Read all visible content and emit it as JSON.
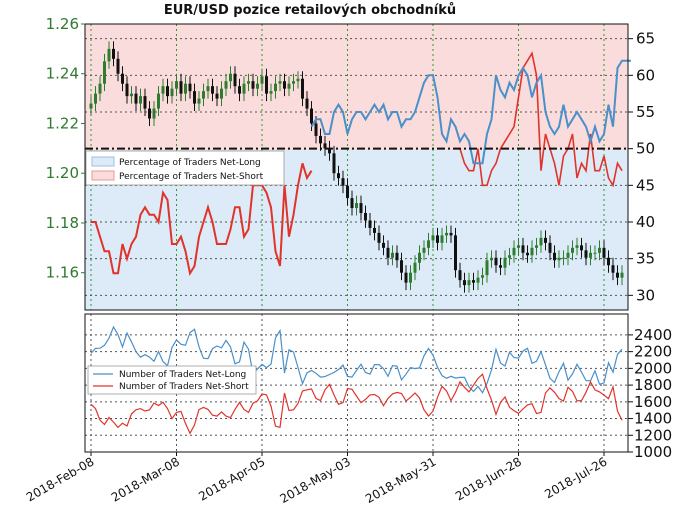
{
  "title": "EUR/USD pozice retailových obchodníků",
  "colors": {
    "long_line": "#4a90c9",
    "short_line": "#e0342b",
    "long_fill": "#dcebf7",
    "short_fill": "#fbdcdc",
    "candle_up": "#2e7d2e",
    "candle_down": "#111111",
    "left_axis": "#2f7a2f"
  },
  "chart_data": [
    {
      "type": "line",
      "name": "price-and-sentiment",
      "x_dates": [
        "2018-Feb-08",
        "2018-Mar-08",
        "2018-Apr-05",
        "2018-May-03",
        "2018-May-31",
        "2018-Jun-28",
        "2018-Jul-26"
      ],
      "left_axis": {
        "ylim": [
          1.145,
          1.26
        ],
        "ticks": [
          "1.26",
          "1.24",
          "1.22",
          "1.20",
          "1.18",
          "1.16"
        ]
      },
      "right_axis": {
        "ylim": [
          28,
          67
        ],
        "ticks": [
          "65",
          "60",
          "55",
          "50",
          "45",
          "40",
          "35",
          "30"
        ]
      },
      "reference_line": 50,
      "legend": {
        "position": "left",
        "entries": [
          "Percentage of Traders Net-Long",
          "Percentage of Traders Net-Short"
        ]
      },
      "price_close": [
        1.228,
        1.232,
        1.236,
        1.245,
        1.25,
        1.246,
        1.24,
        1.236,
        1.231,
        1.232,
        1.228,
        1.231,
        1.226,
        1.222,
        1.226,
        1.232,
        1.235,
        1.231,
        1.234,
        1.237,
        1.232,
        1.236,
        1.233,
        1.228,
        1.23,
        1.233,
        1.235,
        1.232,
        1.23,
        1.234,
        1.237,
        1.24,
        1.235,
        1.232,
        1.236,
        1.237,
        1.234,
        1.236,
        1.239,
        1.232,
        1.233,
        1.236,
        1.237,
        1.234,
        1.236,
        1.237,
        1.238,
        1.23,
        1.226,
        1.22,
        1.215,
        1.212,
        1.21,
        1.208,
        1.2,
        1.198,
        1.195,
        1.19,
        1.186,
        1.188,
        1.184,
        1.181,
        1.178,
        1.176,
        1.172,
        1.17,
        1.166,
        1.168,
        1.165,
        1.16,
        1.156,
        1.16,
        1.164,
        1.168,
        1.17,
        1.173,
        1.175,
        1.172,
        1.175,
        1.176,
        1.175,
        1.161,
        1.157,
        1.155,
        1.157,
        1.156,
        1.158,
        1.159,
        1.165,
        1.166,
        1.163,
        1.162,
        1.166,
        1.167,
        1.17,
        1.171,
        1.168,
        1.167,
        1.17,
        1.171,
        1.174,
        1.172,
        1.168,
        1.165,
        1.166,
        1.166,
        1.168,
        1.17,
        1.171,
        1.169,
        1.166,
        1.168,
        1.168,
        1.17,
        1.166,
        1.163,
        1.16,
        1.158,
        1.16
      ],
      "long_pct": [
        null,
        null,
        null,
        null,
        null,
        null,
        null,
        null,
        null,
        null,
        null,
        null,
        null,
        null,
        null,
        null,
        null,
        null,
        null,
        null,
        null,
        null,
        null,
        null,
        null,
        null,
        null,
        null,
        null,
        null,
        null,
        null,
        null,
        null,
        null,
        null,
        null,
        null,
        null,
        null,
        null,
        null,
        null,
        null,
        null,
        null,
        null,
        null,
        null,
        53,
        54,
        54,
        52,
        52,
        55,
        56,
        55,
        52,
        54,
        55,
        55,
        54,
        55,
        56,
        55,
        56,
        54,
        55,
        55,
        53,
        54,
        54,
        55,
        57,
        59,
        60,
        60,
        57,
        52,
        51,
        54,
        53,
        51,
        52,
        51,
        48,
        48,
        48,
        52,
        54,
        60,
        58,
        57,
        59,
        58,
        60,
        61,
        60,
        57,
        59,
        60,
        55,
        53,
        52,
        53,
        56,
        53,
        54,
        55,
        54,
        53,
        51,
        53,
        51,
        52,
        56,
        53,
        61,
        62,
        62,
        62
      ],
      "short_pct": [
        40,
        40,
        38,
        36,
        36,
        33,
        33,
        37,
        35,
        37,
        38,
        41,
        42,
        41,
        41,
        40,
        44,
        43,
        37,
        37,
        38,
        36,
        33,
        34,
        38,
        40,
        42,
        40,
        37,
        37,
        37,
        39,
        42,
        42,
        38,
        39,
        45,
        45,
        45,
        44,
        42,
        36,
        34,
        45,
        38,
        41,
        45,
        48,
        46,
        47
      ],
      "short_pct_later": [
        50,
        50,
        48,
        47,
        47,
        50,
        45,
        45,
        47,
        48,
        50,
        51,
        52,
        53,
        57,
        61,
        62,
        63,
        60,
        47,
        52,
        50,
        48,
        45,
        49,
        50,
        52,
        46,
        48,
        47,
        52,
        47,
        47,
        49,
        46,
        45,
        48,
        47
      ]
    },
    {
      "type": "line",
      "name": "trader-counts",
      "right_axis": {
        "ylim": [
          1000,
          2650
        ],
        "ticks": [
          "2400",
          "2200",
          "2000",
          "1800",
          "1600",
          "1400",
          "1200",
          "1000"
        ]
      },
      "legend": {
        "position": "left",
        "entries": [
          "Number of Traders Net-Long",
          "Number of Traders Net-Short"
        ]
      }
    }
  ]
}
